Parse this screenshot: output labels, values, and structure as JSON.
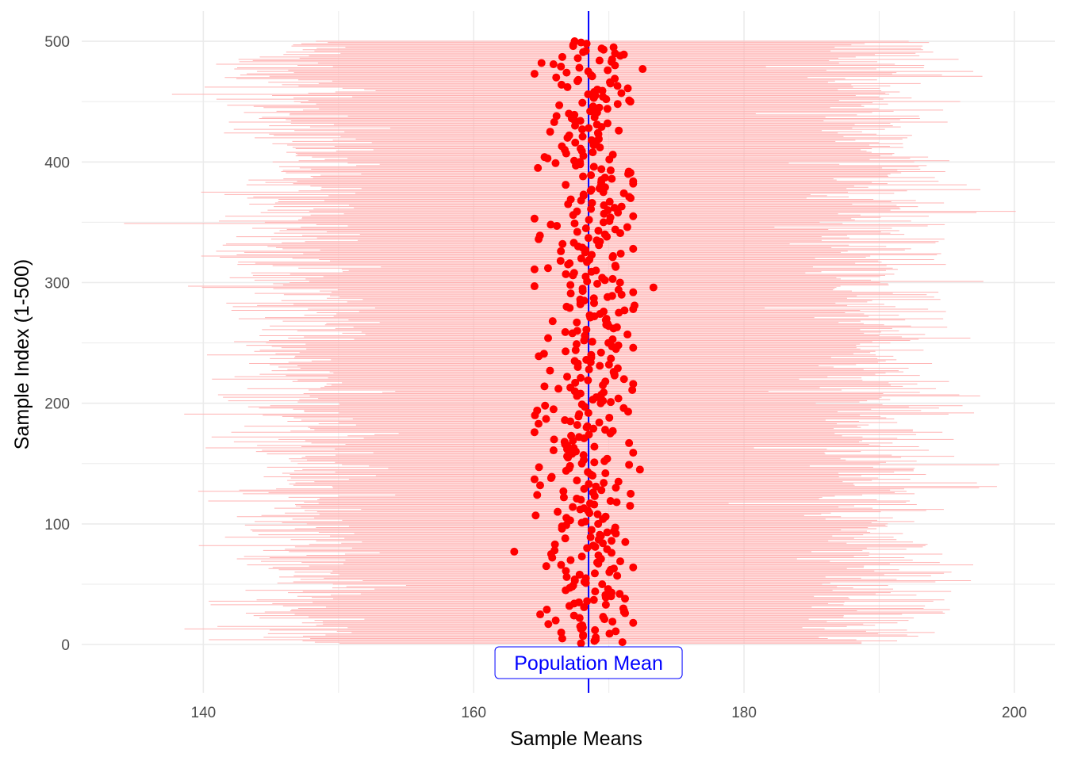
{
  "chart_data": {
    "type": "scatter",
    "title": "",
    "xlabel": "Sample Means",
    "ylabel": "Sample Index (1-500)",
    "xlim": [
      131,
      203
    ],
    "ylim": [
      -40,
      525
    ],
    "x_ticks": [
      140,
      160,
      180,
      200
    ],
    "y_ticks": [
      0,
      100,
      200,
      300,
      400,
      500
    ],
    "x_tick_labels": [
      "140",
      "160",
      "180",
      "200"
    ],
    "y_tick_labels": [
      "0",
      "100",
      "200",
      "300",
      "400",
      "500"
    ],
    "grid": true,
    "n_samples": 500,
    "population_mean": 168.5,
    "annotation": {
      "text": "Population Mean",
      "x": 168.5,
      "y": -15
    },
    "colors": {
      "points": "#ff0000",
      "interval_lines": "#ffb3b3",
      "mean_line": "#0000ff",
      "annotation_text": "#0000ff",
      "annotation_border": "#0000ff",
      "grid": "#ebebeb",
      "tick_text": "#4d4d4d"
    },
    "samples": {
      "description_of_series": "Each sample i (1-500) has a mean point and a horizontal interval.",
      "mean_center": 168.5,
      "mean_spread_sd": 1.8,
      "mean_min": 163.0,
      "mean_max": 173.3,
      "interval_low_typical": 147.0,
      "interval_high_typical": 190.0,
      "interval_low_min": 134.0,
      "interval_high_max": 201.0
    },
    "highlighted_points": [
      {
        "x": 163.0,
        "y": 77
      },
      {
        "x": 164.5,
        "y": 137
      },
      {
        "x": 164.8,
        "y": 183
      },
      {
        "x": 164.9,
        "y": 339
      },
      {
        "x": 165.2,
        "y": 241
      },
      {
        "x": 165.5,
        "y": 312
      },
      {
        "x": 173.3,
        "y": 296
      },
      {
        "x": 172.5,
        "y": 477
      },
      {
        "x": 172.3,
        "y": 145
      },
      {
        "x": 171.8,
        "y": 384
      },
      {
        "x": 171.6,
        "y": 391
      },
      {
        "x": 171.2,
        "y": 26
      },
      {
        "x": 171.9,
        "y": 281
      },
      {
        "x": 171.5,
        "y": 451
      }
    ]
  }
}
